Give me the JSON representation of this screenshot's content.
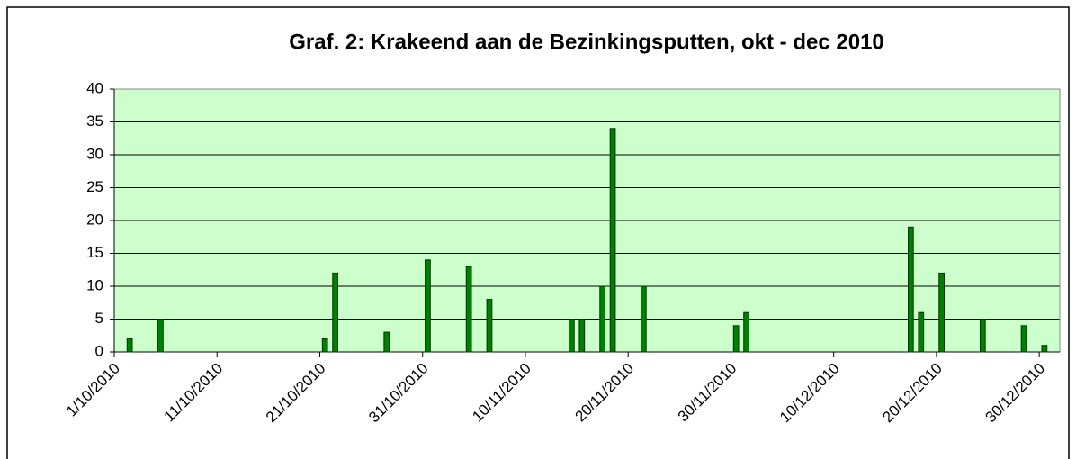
{
  "chart_data": {
    "type": "bar",
    "title": "Graf. 2: Krakeend aan de Bezinkingsputten, okt - dec 2010",
    "categories": [
      "1/10/2010",
      null,
      null,
      null,
      null,
      null,
      null,
      null,
      null,
      null,
      "11/10/2010",
      null,
      null,
      null,
      null,
      null,
      null,
      null,
      null,
      null,
      "21/10/2010",
      null,
      null,
      null,
      null,
      null,
      null,
      null,
      null,
      null,
      "31/10/2010",
      null,
      null,
      null,
      null,
      null,
      null,
      null,
      null,
      null,
      "10/11/2010",
      null,
      null,
      null,
      null,
      null,
      null,
      null,
      null,
      null,
      "20/11/2010",
      null,
      null,
      null,
      null,
      null,
      null,
      null,
      null,
      null,
      "30/11/2010",
      null,
      null,
      null,
      null,
      null,
      null,
      null,
      null,
      null,
      "10/12/2010",
      null,
      null,
      null,
      null,
      null,
      null,
      null,
      null,
      null,
      "20/12/2010",
      null,
      null,
      null,
      null,
      null,
      null,
      null,
      null,
      null,
      "30/12/2010",
      null
    ],
    "values": [
      null,
      2,
      null,
      null,
      5,
      null,
      null,
      null,
      null,
      null,
      null,
      null,
      null,
      null,
      null,
      null,
      null,
      null,
      null,
      null,
      2,
      12,
      null,
      null,
      null,
      null,
      3,
      null,
      null,
      null,
      14,
      null,
      null,
      null,
      13,
      null,
      8,
      null,
      null,
      null,
      null,
      null,
      null,
      null,
      5,
      5,
      null,
      10,
      34,
      null,
      null,
      10,
      null,
      null,
      null,
      null,
      null,
      null,
      null,
      null,
      4,
      6,
      null,
      null,
      null,
      null,
      null,
      null,
      null,
      null,
      null,
      null,
      null,
      null,
      null,
      null,
      null,
      19,
      6,
      null,
      12,
      null,
      null,
      null,
      5,
      null,
      null,
      null,
      4,
      null,
      1,
      null
    ],
    "color": "#008000",
    "ylim": [
      0,
      40
    ],
    "yticks": [
      0,
      5,
      10,
      15,
      20,
      25,
      30,
      35,
      40
    ],
    "grid": true
  }
}
